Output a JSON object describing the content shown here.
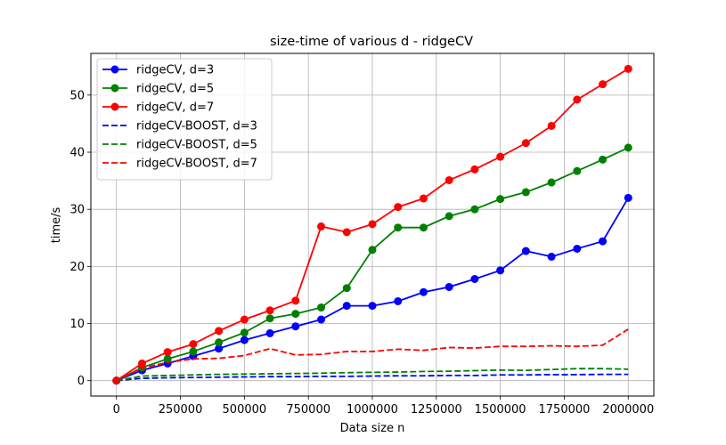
{
  "chart_data": {
    "type": "line",
    "title": "size-time of various d - ridgeCV",
    "xlabel": "Data size n",
    "ylabel": "time/s",
    "xlim": [
      -100000,
      2100000
    ],
    "ylim": [
      -2.7,
      57.3
    ],
    "grid": true,
    "legend_position": "top-left",
    "x_ticks": [
      0,
      250000,
      500000,
      750000,
      1000000,
      1250000,
      1500000,
      1750000,
      2000000
    ],
    "x_tick_labels": [
      "0",
      "250000",
      "500000",
      "750000",
      "1000000",
      "1250000",
      "1500000",
      "1750000",
      "2000000"
    ],
    "y_ticks": [
      0,
      10,
      20,
      30,
      40,
      50
    ],
    "y_tick_labels": [
      "0",
      "10",
      "20",
      "30",
      "40",
      "50"
    ],
    "x": [
      0,
      100000,
      200000,
      300000,
      400000,
      500000,
      600000,
      700000,
      800000,
      900000,
      1000000,
      1100000,
      1200000,
      1300000,
      1400000,
      1500000,
      1600000,
      1700000,
      1800000,
      1900000,
      2000000
    ],
    "series": [
      {
        "name": "ridgeCV, d=3",
        "color": "#0000ff",
        "style": "solid",
        "marker": true,
        "values": [
          0,
          1.8,
          3.0,
          4.3,
          5.6,
          7.1,
          8.3,
          9.5,
          10.7,
          13.1,
          13.1,
          13.9,
          15.5,
          16.4,
          17.8,
          19.3,
          22.7,
          21.7,
          23.1,
          24.4,
          32.0
        ]
      },
      {
        "name": "ridgeCV, d=5",
        "color": "#008000",
        "style": "solid",
        "marker": true,
        "values": [
          0,
          2.3,
          3.8,
          5.1,
          6.7,
          8.4,
          10.9,
          11.7,
          12.8,
          16.2,
          22.9,
          26.8,
          26.8,
          28.8,
          30.0,
          31.8,
          33.0,
          34.7,
          36.7,
          38.7,
          40.8
        ]
      },
      {
        "name": "ridgeCV, d=7",
        "color": "#ff0000",
        "style": "solid",
        "marker": true,
        "values": [
          0,
          3.0,
          5.0,
          6.4,
          8.7,
          10.7,
          12.3,
          14.0,
          27.0,
          26.0,
          27.4,
          30.4,
          31.9,
          35.1,
          37.0,
          39.2,
          41.6,
          44.6,
          49.2,
          51.9,
          54.6
        ]
      },
      {
        "name": "ridgeCV-BOOST, d=3",
        "color": "#0000ff",
        "style": "dashed",
        "marker": false,
        "values": [
          0,
          0.4,
          0.5,
          0.55,
          0.6,
          0.65,
          0.7,
          0.7,
          0.75,
          0.75,
          0.8,
          0.85,
          0.85,
          0.9,
          0.9,
          1.0,
          1.0,
          1.05,
          1.05,
          1.1,
          1.1
        ]
      },
      {
        "name": "ridgeCV-BOOST, d=5",
        "color": "#008000",
        "style": "dashed",
        "marker": false,
        "values": [
          0,
          0.8,
          0.9,
          1.0,
          1.1,
          1.15,
          1.2,
          1.25,
          1.3,
          1.4,
          1.45,
          1.5,
          1.6,
          1.65,
          1.75,
          1.85,
          1.8,
          1.95,
          2.1,
          2.1,
          2.0
        ]
      },
      {
        "name": "ridgeCV-BOOST, d=7",
        "color": "#ff0000",
        "style": "dashed",
        "marker": false,
        "values": [
          0,
          2.2,
          3.2,
          3.8,
          3.9,
          4.4,
          5.6,
          4.5,
          4.6,
          5.1,
          5.1,
          5.5,
          5.3,
          5.8,
          5.7,
          6.0,
          6.0,
          6.1,
          6.0,
          6.2,
          9.0
        ]
      }
    ]
  }
}
